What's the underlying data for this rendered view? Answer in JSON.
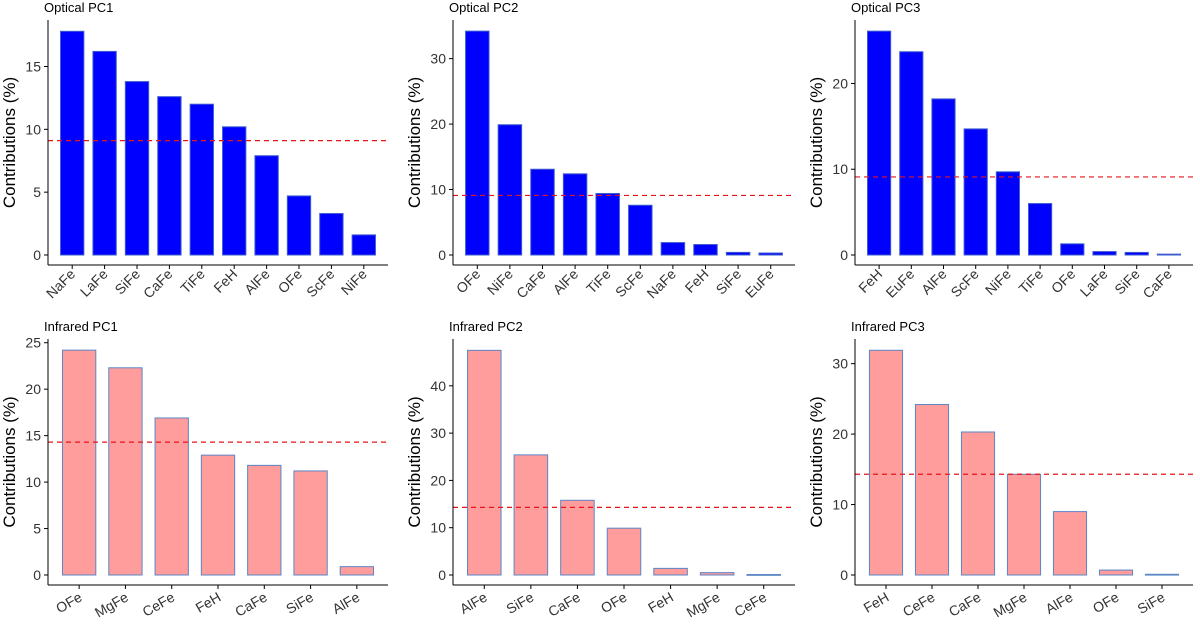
{
  "colors": {
    "optical_fill": "#0000ff",
    "optical_stroke": "#3d5ccf",
    "infrared_fill": "#ff9c9c",
    "infrared_stroke": "#5b86c6",
    "reference_line": "#e8141a",
    "axis": "#000000"
  },
  "chart_data": [
    {
      "type": "bar",
      "title": "Optical PC1",
      "ylabel": "Contributions (%)",
      "xlabel": "",
      "categories": [
        "NaFe",
        "LaFe",
        "SiFe",
        "CaFe",
        "TiFe",
        "FeH",
        "AlFe",
        "OFe",
        "ScFe",
        "NiFe"
      ],
      "values": [
        17.8,
        16.2,
        13.8,
        12.6,
        12.0,
        10.2,
        7.9,
        4.7,
        3.3,
        1.6
      ],
      "ylim": [
        0,
        18.7
      ],
      "yticks": [
        0,
        5,
        10,
        15
      ],
      "reference_line": 9.1,
      "series_group": "optical"
    },
    {
      "type": "bar",
      "title": "Optical PC2",
      "ylabel": "Contributions (%)",
      "xlabel": "",
      "categories": [
        "OFe",
        "NiFe",
        "CaFe",
        "AlFe",
        "TiFe",
        "ScFe",
        "NaFe",
        "FeH",
        "SiFe",
        "EuFe"
      ],
      "values": [
        34.2,
        19.9,
        13.1,
        12.4,
        9.4,
        7.6,
        1.9,
        1.6,
        0.4,
        0.3
      ],
      "ylim": [
        0,
        35.9
      ],
      "yticks": [
        0,
        10,
        20,
        30
      ],
      "reference_line": 9.1,
      "series_group": "optical"
    },
    {
      "type": "bar",
      "title": "Optical PC3",
      "ylabel": "Contributions (%)",
      "xlabel": "",
      "categories": [
        "FeH",
        "EuFe",
        "AlFe",
        "ScFe",
        "NiFe",
        "TiFe",
        "OFe",
        "LaFe",
        "SiFe",
        "CaFe"
      ],
      "values": [
        26.1,
        23.7,
        18.2,
        14.7,
        9.7,
        6.0,
        1.3,
        0.4,
        0.3,
        0.1
      ],
      "ylim": [
        0,
        27.4
      ],
      "yticks": [
        0,
        10,
        20
      ],
      "reference_line": 9.1,
      "series_group": "optical"
    },
    {
      "type": "bar",
      "title": "Infrared PC1",
      "ylabel": "Contributions (%)",
      "xlabel": "",
      "categories": [
        "OFe",
        "MgFe",
        "CeFe",
        "FeH",
        "CaFe",
        "SiFe",
        "AlFe"
      ],
      "values": [
        24.2,
        22.3,
        16.9,
        12.9,
        11.8,
        11.2,
        0.9
      ],
      "ylim": [
        0,
        25.4
      ],
      "yticks": [
        0,
        5,
        10,
        15,
        20,
        25
      ],
      "reference_line": 14.3,
      "series_group": "infrared"
    },
    {
      "type": "bar",
      "title": "Infrared PC2",
      "ylabel": "Contributions (%)",
      "xlabel": "",
      "categories": [
        "AlFe",
        "SiFe",
        "CaFe",
        "OFe",
        "FeH",
        "MgFe",
        "CeFe"
      ],
      "values": [
        47.5,
        25.4,
        15.8,
        9.9,
        1.4,
        0.5,
        0.1
      ],
      "ylim": [
        0,
        49.9
      ],
      "yticks": [
        0,
        10,
        20,
        30,
        40
      ],
      "reference_line": 14.3,
      "series_group": "infrared"
    },
    {
      "type": "bar",
      "title": "Infrared PC3",
      "ylabel": "Contributions (%)",
      "xlabel": "",
      "categories": [
        "FeH",
        "CeFe",
        "CaFe",
        "MgFe",
        "AlFe",
        "OFe",
        "SiFe"
      ],
      "values": [
        31.9,
        24.2,
        20.3,
        14.3,
        9.0,
        0.7,
        0.1
      ],
      "ylim": [
        0,
        33.5
      ],
      "yticks": [
        0,
        10,
        20,
        30
      ],
      "reference_line": 14.3,
      "series_group": "infrared"
    }
  ]
}
